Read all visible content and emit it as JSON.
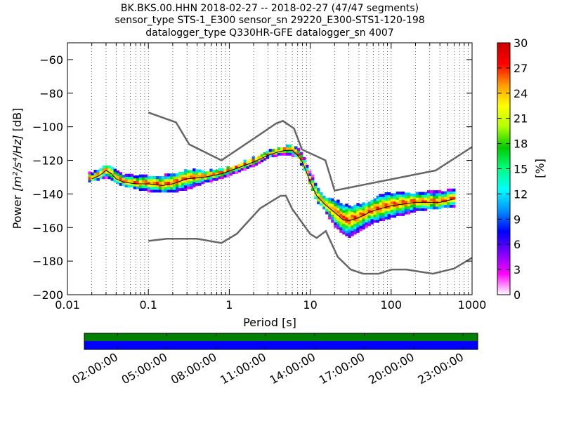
{
  "chart_data": {
    "type": "heatmap",
    "title_lines": [
      "BK.BKS.00.HHN   2018-02-27 -- 2018-02-27  (47/47 segments)",
      "sensor_type STS-1_E300 sensor_sn 29220_E300-STS1-120-198",
      "datalogger_type Q330HR-GFE datalogger_sn 4007"
    ],
    "xlabel": "Period [s]",
    "ylabel_prefix": "Power ",
    "ylabel_units": "[m²/s⁴/Hz]",
    "ylabel_suffix": " [dB]",
    "xscale": "log",
    "xlim": [
      0.01,
      1000
    ],
    "ylim": [
      -200,
      -50
    ],
    "x_ticks": [
      {
        "value": 0.01,
        "label": "0.01"
      },
      {
        "value": 0.1,
        "label": "0.1"
      },
      {
        "value": 1,
        "label": "1"
      },
      {
        "value": 10,
        "label": "10"
      },
      {
        "value": 100,
        "label": "100"
      },
      {
        "value": 1000,
        "label": "1000"
      }
    ],
    "y_ticks": [
      {
        "value": -60,
        "label": "−60"
      },
      {
        "value": -80,
        "label": "−80"
      },
      {
        "value": -100,
        "label": "−100"
      },
      {
        "value": -120,
        "label": "−120"
      },
      {
        "value": -140,
        "label": "−140"
      },
      {
        "value": -160,
        "label": "−160"
      },
      {
        "value": -180,
        "label": "−180"
      },
      {
        "value": -200,
        "label": "−200"
      }
    ],
    "grid": "dotted-vertical",
    "colorbar": {
      "label": "[%]",
      "min": 0,
      "max": 30,
      "ticks": [
        "0",
        "3",
        "6",
        "9",
        "12",
        "15",
        "18",
        "21",
        "24",
        "27",
        "30"
      ],
      "colors": [
        "#ffffff",
        "#ff00ff",
        "#7a00ff",
        "#0000ff",
        "#0090ff",
        "#00ffff",
        "#00ff80",
        "#00cc00",
        "#b0ff00",
        "#ffff00",
        "#ff9900",
        "#ff0000",
        "#cc0000"
      ]
    },
    "noise_model_high": {
      "name": "NHNM",
      "color": "#666666",
      "points": [
        [
          0.1,
          -91.5
        ],
        [
          0.22,
          -97.4
        ],
        [
          0.32,
          -110.5
        ],
        [
          0.8,
          -120
        ],
        [
          3.8,
          -98
        ],
        [
          4.6,
          -96.5
        ],
        [
          6.3,
          -101
        ],
        [
          7.9,
          -113.5
        ],
        [
          15.4,
          -120
        ],
        [
          20,
          -138
        ],
        [
          354.8,
          -126
        ],
        [
          1000,
          -112
        ]
      ]
    },
    "noise_model_low": {
      "name": "NLNM",
      "color": "#666666",
      "points": [
        [
          0.1,
          -168
        ],
        [
          0.17,
          -166.7
        ],
        [
          0.4,
          -166.7
        ],
        [
          0.8,
          -169.2
        ],
        [
          1.24,
          -163.7
        ],
        [
          2.4,
          -148.6
        ],
        [
          4.3,
          -141.1
        ],
        [
          5,
          -141.1
        ],
        [
          6,
          -149
        ],
        [
          10,
          -163.8
        ],
        [
          12,
          -166.2
        ],
        [
          15.6,
          -162.1
        ],
        [
          21.9,
          -177.5
        ],
        [
          31.6,
          -185
        ],
        [
          45,
          -187.5
        ],
        [
          70,
          -187.5
        ],
        [
          101,
          -185
        ],
        [
          154,
          -185
        ],
        [
          328,
          -187.5
        ],
        [
          600,
          -184.4
        ],
        [
          1000,
          -178
        ]
      ]
    },
    "mode_curve": {
      "points": [
        [
          0.02,
          -131
        ],
        [
          0.025,
          -129
        ],
        [
          0.03,
          -126
        ],
        [
          0.035,
          -128
        ],
        [
          0.04,
          -131
        ],
        [
          0.05,
          -133
        ],
        [
          0.07,
          -134
        ],
        [
          0.1,
          -134
        ],
        [
          0.15,
          -135
        ],
        [
          0.2,
          -134
        ],
        [
          0.3,
          -131
        ],
        [
          0.5,
          -130
        ],
        [
          0.8,
          -128
        ],
        [
          1.2,
          -125
        ],
        [
          2,
          -121
        ],
        [
          3,
          -117
        ],
        [
          4,
          -115
        ],
        [
          5,
          -114
        ],
        [
          6,
          -114
        ],
        [
          7,
          -117
        ],
        [
          8,
          -121
        ],
        [
          9,
          -127
        ],
        [
          10,
          -133
        ],
        [
          12,
          -141
        ],
        [
          15,
          -146
        ],
        [
          20,
          -151
        ],
        [
          25,
          -155
        ],
        [
          30,
          -156
        ],
        [
          40,
          -154
        ],
        [
          60,
          -150
        ],
        [
          100,
          -147
        ],
        [
          200,
          -145
        ],
        [
          400,
          -145
        ],
        [
          600,
          -143
        ]
      ]
    },
    "pdf_spread": {
      "series": [
        {
          "name": "upper",
          "points": [
            [
              0.02,
              -128
            ],
            [
              0.03,
              -123
            ],
            [
              0.05,
              -129
            ],
            [
              0.1,
              -130
            ],
            [
              0.2,
              -129
            ],
            [
              0.3,
              -126
            ],
            [
              0.5,
              -127
            ],
            [
              1,
              -125
            ],
            [
              2,
              -119
            ],
            [
              3,
              -115
            ],
            [
              5,
              -112
            ],
            [
              7,
              -112
            ],
            [
              9,
              -122
            ],
            [
              12,
              -135
            ],
            [
              15,
              -142
            ],
            [
              20,
              -144
            ],
            [
              30,
              -148
            ],
            [
              50,
              -146
            ],
            [
              70,
              -141
            ],
            [
              100,
              -140
            ],
            [
              200,
              -140
            ],
            [
              600,
              -138
            ]
          ]
        },
        {
          "name": "lower",
          "points": [
            [
              0.02,
              -133
            ],
            [
              0.03,
              -131
            ],
            [
              0.05,
              -136
            ],
            [
              0.1,
              -139
            ],
            [
              0.2,
              -140
            ],
            [
              0.3,
              -138
            ],
            [
              0.5,
              -134
            ],
            [
              1,
              -130
            ],
            [
              2,
              -124
            ],
            [
              3,
              -119
            ],
            [
              5,
              -117
            ],
            [
              7,
              -119
            ],
            [
              9,
              -129
            ],
            [
              12,
              -145
            ],
            [
              15,
              -150
            ],
            [
              20,
              -160
            ],
            [
              30,
              -167
            ],
            [
              50,
              -160
            ],
            [
              70,
              -157
            ],
            [
              100,
              -155
            ],
            [
              200,
              -151
            ],
            [
              600,
              -148
            ]
          ]
        }
      ]
    },
    "time_axis": {
      "ticks": [
        "02:00:00",
        "05:00:00",
        "08:00:00",
        "11:00:00",
        "14:00:00",
        "17:00:00",
        "20:00:00",
        "23:00:00"
      ],
      "band_colors": [
        "#008000",
        "#0000ff"
      ]
    }
  }
}
